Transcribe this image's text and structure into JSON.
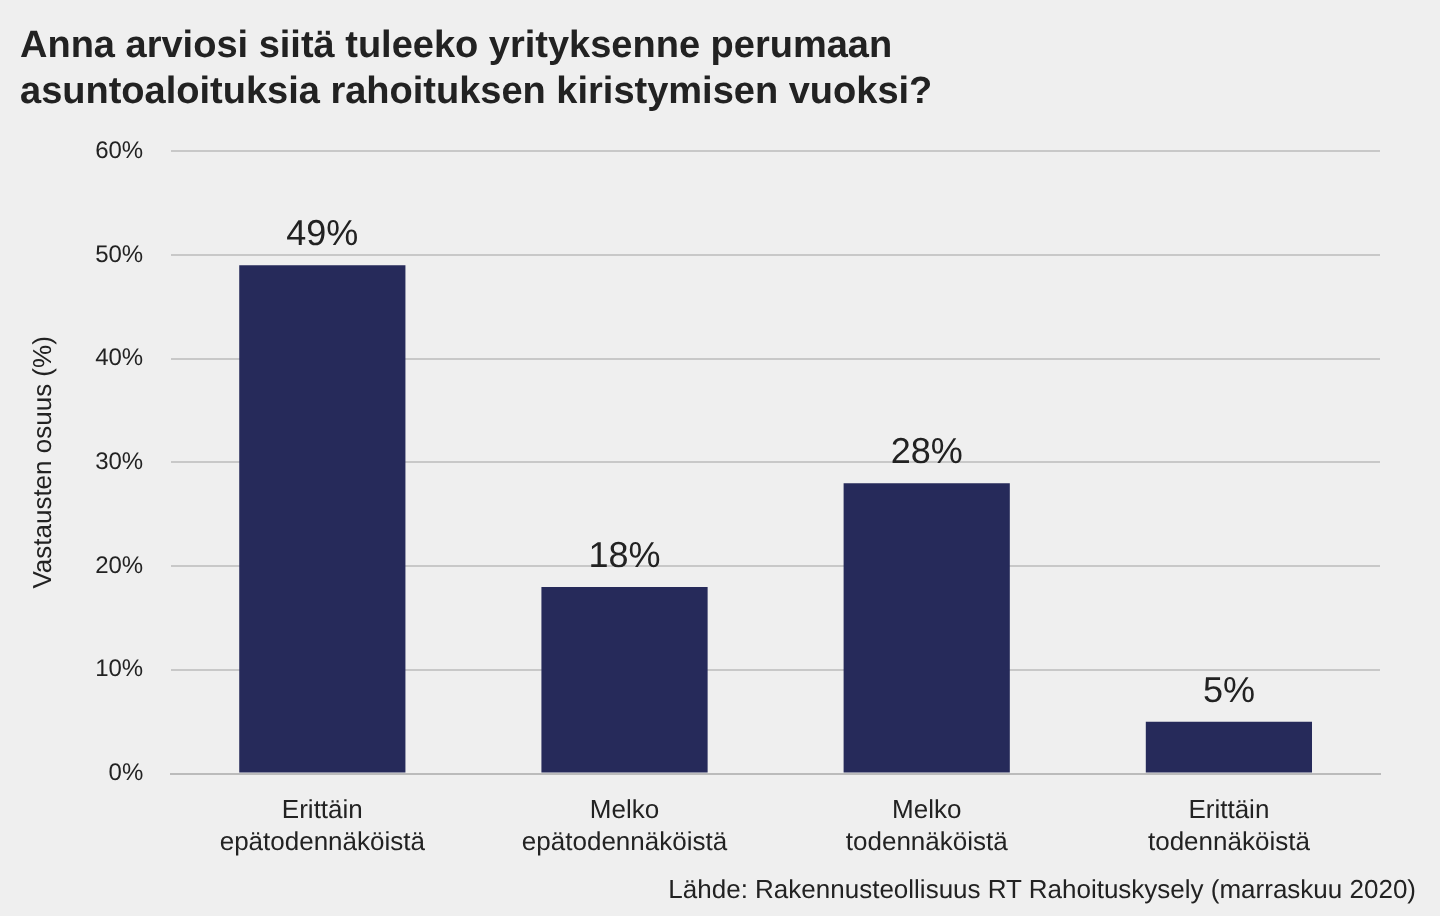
{
  "chart_data": {
    "type": "bar",
    "title": "Anna arviosi siitä tuleeko yrityksenne perumaan\nasuntoaloituksia rahoituksen kiristymisen vuoksi?",
    "ylabel": "Vastausten osuus (%)",
    "categories": [
      "Erittäin\nepätodennäköistä",
      "Melko\nepätodennäköistä",
      "Melko\ntodennäköistä",
      "Erittäin\ntodennäköistä"
    ],
    "values": [
      49,
      18,
      28,
      5
    ],
    "value_labels": [
      "49%",
      "18%",
      "28%",
      "5%"
    ],
    "color": "#262a5a",
    "ylim": [
      0,
      60
    ],
    "yticks": [
      {
        "value": 0,
        "label": "0%"
      },
      {
        "value": 10,
        "label": "10%"
      },
      {
        "value": 20,
        "label": "20%"
      },
      {
        "value": 30,
        "label": "30%"
      },
      {
        "value": 40,
        "label": "40%"
      },
      {
        "value": 50,
        "label": "50%"
      },
      {
        "value": 60,
        "label": "60%"
      }
    ],
    "grid": "y",
    "legend": false,
    "annotations": [
      "Lähde: Rakennusteollisuus RT Rahoituskysely (marraskuu 2020)"
    ]
  }
}
